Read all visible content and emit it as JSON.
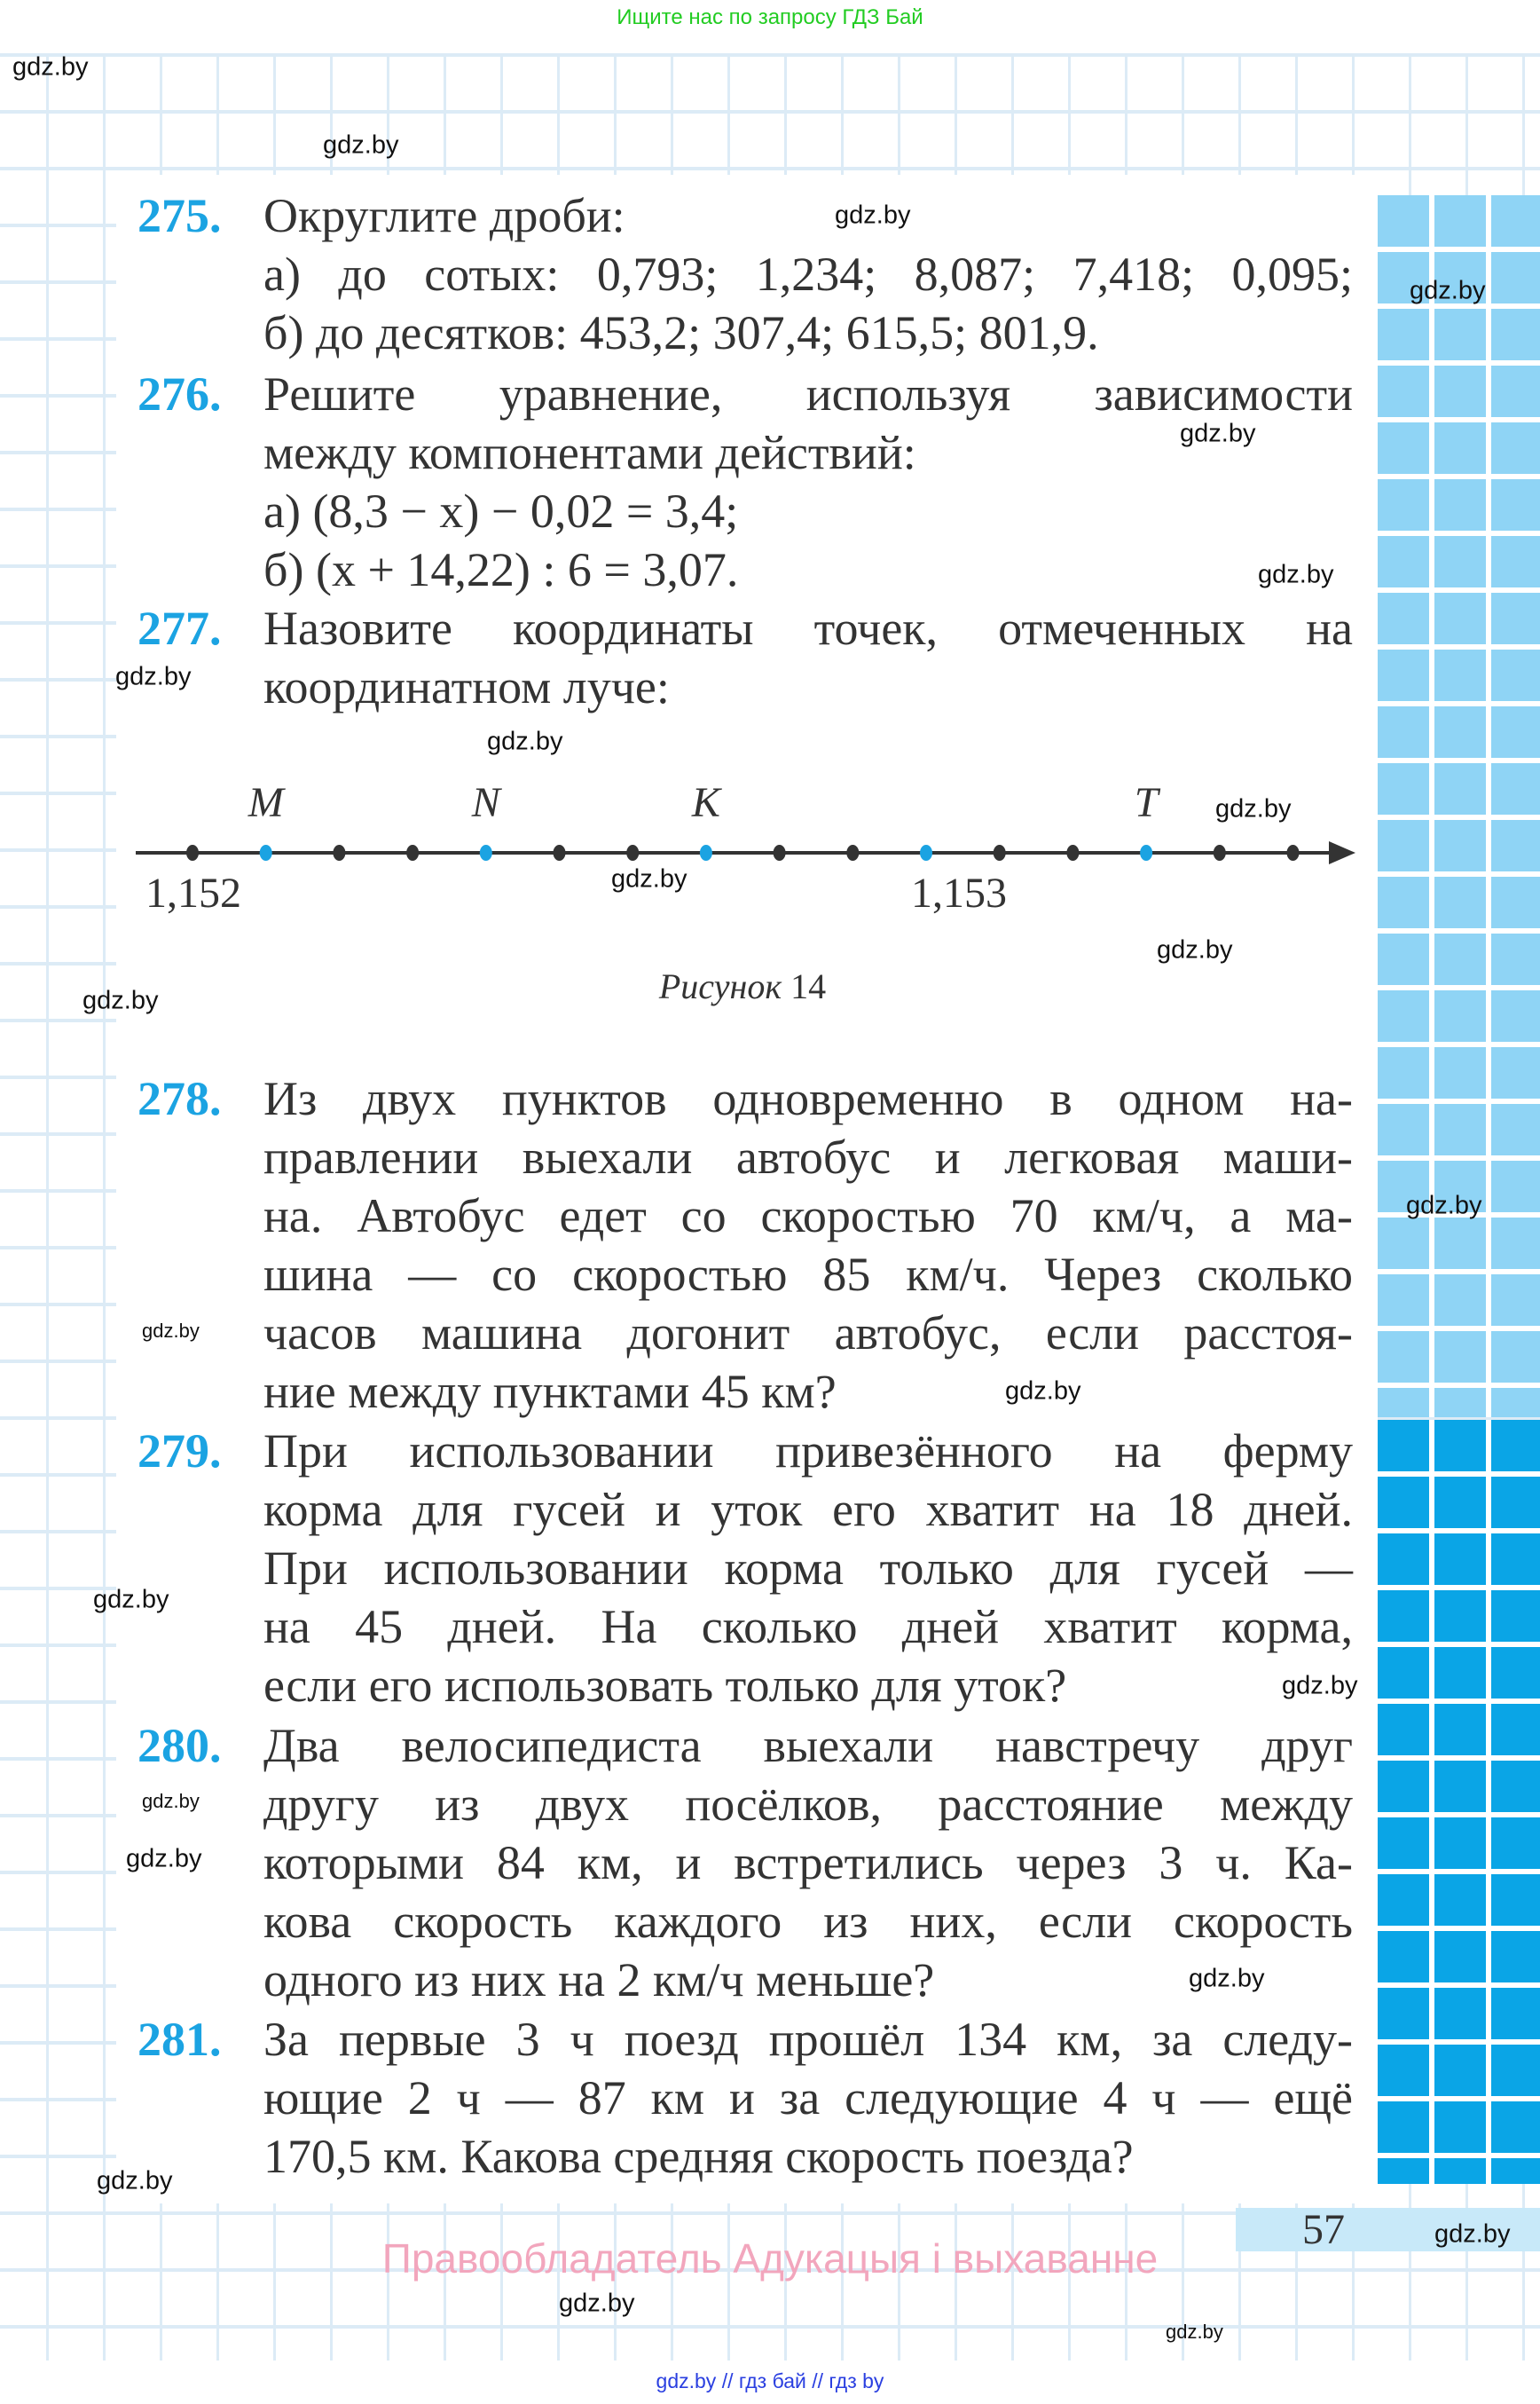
{
  "header": {
    "search_note": "Ищите нас по запросу ГДЗ Бай"
  },
  "watermark": "gdz.by",
  "problems": [
    {
      "number": "275.",
      "lines": [
        "Округлите дроби:",
        "а) до сотых: 0,793; 1,234; 8,087; 7,418; 0,095;",
        "б) до десятков: 453,2; 307,4; 615,5; 801,9."
      ]
    },
    {
      "number": "276.",
      "lines": [
        "Решите уравнение, используя зависимости",
        "между компонентами действий:",
        "а) (8,3 − x) − 0,02 = 3,4;",
        "б) (x + 14,22) : 6 = 3,07."
      ]
    },
    {
      "number": "277.",
      "lines": [
        "Назовите координаты точек, отмеченных на",
        "координатном луче:"
      ]
    },
    {
      "number": "278.",
      "lines": [
        "Из двух пунктов одновременно в одном на-",
        "правлении выехали автобус и легковая маши-",
        "на. Автобус едет со скоростью 70 км/ч, а ма-",
        "шина — со скоростью 85 км/ч. Через сколько",
        "часов машина догонит автобус, если расстоя-",
        "ние между пунктами 45 км?"
      ]
    },
    {
      "number": "279.",
      "lines": [
        "При использовании привезённого на ферму",
        "корма для гусей и уток его хватит на 18 дней.",
        "При использовании корма только для гусей —",
        "на 45 дней. На сколько дней хватит корма,",
        "если его использовать только для уток?"
      ]
    },
    {
      "number": "280.",
      "lines": [
        "Два велосипедиста выехали навстречу друг",
        "другу из двух посёлков, расстояние между",
        "которыми 84 км, и встретились через 3 ч. Ка-",
        "кова скорость каждого из них, если скорость",
        "одного из них на 2 км/ч меньше?"
      ]
    },
    {
      "number": "281.",
      "lines": [
        "За первые 3 ч поезд прошёл 134 км, за следу-",
        "ющие 2 ч — 87 км и за следующие 4 ч — ещё",
        "170,5 км. Какова средняя скорость поезда?"
      ]
    }
  ],
  "figure": {
    "start_label": "1,152",
    "mark_label": "1,153",
    "mark_division": 10,
    "divisions_shown": 16,
    "points": [
      {
        "label": "M",
        "division": 1
      },
      {
        "label": "N",
        "division": 4
      },
      {
        "label": "K",
        "division": 7
      },
      {
        "label": "T",
        "division": 13
      }
    ],
    "caption_word": "Рисунок",
    "caption_number": "14",
    "colors": {
      "axis": "#333333",
      "point": "#1ba3e2"
    }
  },
  "footer": {
    "page_number": "57",
    "rights": "Правообладатель Адукацыя і выхаванне",
    "links": "gdz.by // гдз бай // гдз by"
  }
}
